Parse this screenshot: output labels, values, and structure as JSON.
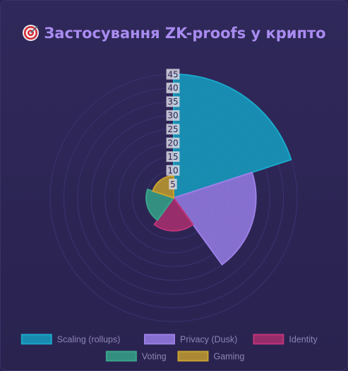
{
  "title": "Застосування ZK-proofs у крипто",
  "title_icon": "target-icon",
  "chart_data": {
    "type": "polarArea",
    "categories": [
      "Scaling (rollups)",
      "Privacy (Dusk)",
      "Identity",
      "Voting",
      "Gaming"
    ],
    "values": [
      45,
      30,
      12,
      10,
      8
    ],
    "colors": [
      "#1aa7c9",
      "#9b7fe6",
      "#c0357a",
      "#3aa48a",
      "#c9a22f"
    ],
    "fill_colors": [
      "#1796b8",
      "#8e76da",
      "#a12e6c",
      "#349984",
      "#b69232"
    ],
    "r_ticks": [
      5,
      10,
      15,
      20,
      25,
      30,
      35,
      40,
      45
    ],
    "r_range": [
      0,
      45
    ],
    "legend_position": "bottom",
    "grid": true
  }
}
